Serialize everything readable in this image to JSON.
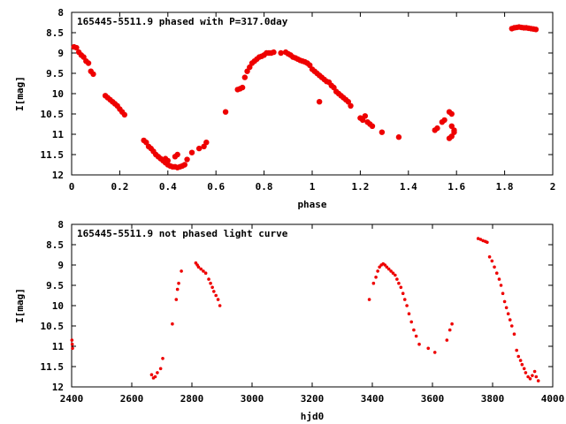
{
  "chart_data": [
    {
      "type": "scatter",
      "title": "165445-5511.9 phased with P=317.0day",
      "xlabel": "phase",
      "ylabel": "I[mag]",
      "xlim": [
        0,
        2
      ],
      "ylim": [
        8,
        12
      ],
      "y_inverted": true,
      "grid": false,
      "legend": "none",
      "color": "#ee0000",
      "x_ticks": [
        "0",
        "0.2",
        "0.4",
        "0.6",
        "0.8",
        "1",
        "1.2",
        "1.4",
        "1.6",
        "1.8",
        "2"
      ],
      "y_ticks": [
        "8",
        "8.5",
        "9",
        "9.5",
        "10",
        "10.5",
        "11",
        "11.5",
        "12"
      ],
      "x": [
        0.01,
        0.02,
        0.03,
        0.04,
        0.05,
        0.06,
        0.07,
        0.08,
        0.09,
        0.14,
        0.15,
        0.16,
        0.17,
        0.18,
        0.19,
        0.2,
        0.21,
        0.22,
        0.3,
        0.31,
        0.32,
        0.33,
        0.34,
        0.35,
        0.36,
        0.37,
        0.38,
        0.39,
        0.4,
        0.41,
        0.42,
        0.43,
        0.44,
        0.45,
        0.46,
        0.47,
        0.39,
        0.4,
        0.43,
        0.44,
        0.48,
        0.5,
        0.53,
        0.55,
        0.56,
        0.64,
        0.69,
        0.7,
        0.71,
        0.72,
        0.73,
        0.74,
        0.75,
        0.76,
        0.77,
        0.78,
        0.79,
        0.8,
        0.81,
        0.82,
        0.83,
        0.84,
        0.87,
        0.89,
        0.9,
        0.91,
        0.92,
        0.93,
        0.94,
        0.95,
        0.96,
        0.97,
        0.98,
        0.99,
        1.0,
        1.01,
        1.02,
        1.03,
        1.04,
        1.05,
        1.06,
        1.07,
        1.08,
        1.09,
        1.1,
        1.11,
        1.12,
        1.13,
        1.14,
        1.15,
        1.16,
        1.2,
        1.21,
        1.22,
        1.23,
        1.24,
        1.25,
        1.29,
        1.03,
        1.36,
        1.51,
        1.52,
        1.54,
        1.55,
        1.57,
        1.58,
        1.58,
        1.59,
        1.57,
        1.58,
        1.59,
        1.83,
        1.84,
        1.85,
        1.86,
        1.87,
        1.88,
        1.89,
        1.9,
        1.91,
        1.92,
        1.93
      ],
      "y": [
        8.85,
        8.87,
        8.98,
        9.05,
        9.1,
        9.2,
        9.25,
        9.45,
        9.52,
        10.05,
        10.1,
        10.15,
        10.2,
        10.25,
        10.3,
        10.38,
        10.45,
        10.52,
        11.15,
        11.2,
        11.3,
        11.35,
        11.42,
        11.5,
        11.55,
        11.6,
        11.65,
        11.7,
        11.75,
        11.78,
        11.8,
        11.8,
        11.82,
        11.8,
        11.78,
        11.75,
        11.6,
        11.65,
        11.55,
        11.5,
        11.62,
        11.45,
        11.35,
        11.3,
        11.2,
        10.45,
        9.9,
        9.88,
        9.85,
        9.6,
        9.45,
        9.35,
        9.25,
        9.2,
        9.15,
        9.1,
        9.08,
        9.05,
        9.0,
        9.0,
        9.0,
        8.98,
        9.0,
        8.98,
        9.02,
        9.05,
        9.1,
        9.12,
        9.15,
        9.18,
        9.2,
        9.22,
        9.25,
        9.3,
        9.4,
        9.45,
        9.5,
        9.55,
        9.6,
        9.65,
        9.7,
        9.72,
        9.8,
        9.85,
        9.95,
        10.0,
        10.05,
        10.1,
        10.15,
        10.2,
        10.3,
        10.6,
        10.65,
        10.55,
        10.7,
        10.75,
        10.8,
        10.95,
        10.2,
        11.07,
        10.9,
        10.85,
        10.7,
        10.65,
        10.45,
        10.5,
        11.05,
        10.9,
        11.1,
        10.8,
        10.95,
        8.4,
        8.38,
        8.37,
        8.36,
        8.37,
        8.38,
        8.38,
        8.39,
        8.4,
        8.41,
        8.42
      ]
    },
    {
      "type": "scatter",
      "title": "165445-5511.9 not phased light curve",
      "xlabel": "hjd0",
      "ylabel": "I[mag]",
      "xlim": [
        2400,
        4000
      ],
      "ylim": [
        8,
        12
      ],
      "y_inverted": true,
      "grid": false,
      "legend": "none",
      "color": "#ee0000",
      "x_ticks": [
        "2400",
        "2600",
        "2800",
        "3000",
        "3200",
        "3400",
        "3600",
        "3800",
        "4000"
      ],
      "y_ticks": [
        "8",
        "8.5",
        "9",
        "9.5",
        "10",
        "10.5",
        "11",
        "11.5",
        "12"
      ],
      "x": [
        2401,
        2402,
        2403,
        2666,
        2672,
        2678,
        2685,
        2696,
        2703,
        2735,
        2748,
        2752,
        2756,
        2765,
        2813,
        2818,
        2822,
        2830,
        2838,
        2846,
        2856,
        2862,
        2868,
        2873,
        2880,
        2887,
        2893,
        3390,
        3404,
        3412,
        3418,
        3424,
        3430,
        3436,
        3442,
        3448,
        3455,
        3462,
        3469,
        3476,
        3482,
        3488,
        3495,
        3502,
        3508,
        3515,
        3522,
        3530,
        3538,
        3546,
        3556,
        3586,
        3608,
        3648,
        3658,
        3665,
        3752,
        3760,
        3768,
        3776,
        3782,
        3790,
        3798,
        3806,
        3814,
        3822,
        3828,
        3834,
        3840,
        3846,
        3852,
        3858,
        3864,
        3872,
        3880,
        3886,
        3893,
        3898,
        3905,
        3910,
        3918,
        3925,
        3932,
        3940,
        3945,
        3952
      ],
      "y": [
        10.85,
        10.95,
        11.05,
        11.7,
        11.78,
        11.75,
        11.65,
        11.55,
        11.3,
        10.45,
        9.85,
        9.6,
        9.45,
        9.15,
        8.95,
        9.0,
        9.05,
        9.1,
        9.15,
        9.2,
        9.35,
        9.45,
        9.55,
        9.65,
        9.75,
        9.85,
        10.0,
        9.85,
        9.45,
        9.3,
        9.15,
        9.05,
        9.0,
        8.97,
        9.0,
        9.05,
        9.1,
        9.15,
        9.2,
        9.25,
        9.35,
        9.45,
        9.55,
        9.7,
        9.85,
        10.0,
        10.2,
        10.4,
        10.6,
        10.75,
        10.95,
        11.05,
        11.15,
        10.85,
        10.6,
        10.45,
        8.35,
        8.37,
        8.4,
        8.42,
        8.44,
        8.8,
        8.9,
        9.05,
        9.2,
        9.35,
        9.5,
        9.7,
        9.9,
        10.05,
        10.2,
        10.35,
        10.5,
        10.7,
        11.1,
        11.25,
        11.35,
        11.45,
        11.55,
        11.65,
        11.75,
        11.8,
        11.72,
        11.62,
        11.75,
        11.85
      ]
    }
  ]
}
